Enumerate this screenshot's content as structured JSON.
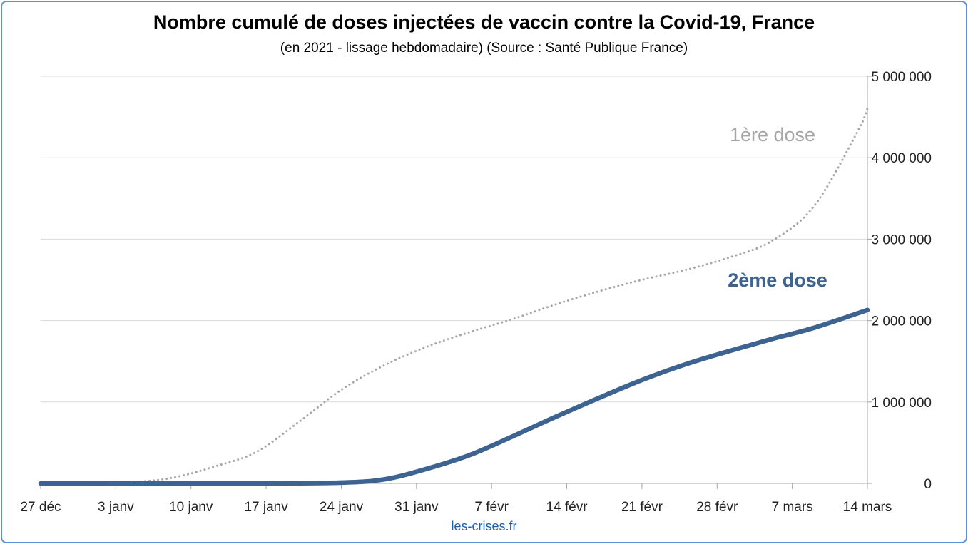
{
  "credit": "les-crises.fr",
  "chart_data": {
    "type": "line",
    "title": "Nombre cumulé de doses injectées de vaccin contre la Covid-19, France",
    "subtitle": "(en 2021 - lissage hebdomadaire) (Source : Santé Publique France)",
    "x_labels": [
      "27 déc",
      "3 janv",
      "10 janv",
      "17 janv",
      "24 janv",
      "31 janv",
      "7 févr",
      "14 févr",
      "21 févr",
      "28 févr",
      "7 mars",
      "14 mars"
    ],
    "y_ticks": [
      "0",
      "1 000 000",
      "2 000 000",
      "3 000 000",
      "4 000 000",
      "5 000 000"
    ],
    "ylim": [
      0,
      5000000
    ],
    "x_range_days": [
      0,
      77
    ],
    "grid": true,
    "series": [
      {
        "name": "1ère dose",
        "color": "#a6a6a6",
        "style": "dotted",
        "x": [
          0,
          5,
          10,
          13,
          16,
          20,
          24,
          28,
          32,
          36,
          40,
          44,
          48,
          52,
          56,
          60,
          64,
          68,
          72,
          76,
          77
        ],
        "y": [
          0,
          0,
          30000,
          90000,
          200000,
          380000,
          750000,
          1150000,
          1450000,
          1680000,
          1860000,
          2020000,
          2200000,
          2360000,
          2500000,
          2620000,
          2770000,
          2970000,
          3400000,
          4300000,
          4600000
        ]
      },
      {
        "name": "2ème dose",
        "color": "#3d6391",
        "style": "solid",
        "x": [
          0,
          20,
          28,
          32,
          36,
          40,
          44,
          48,
          52,
          56,
          60,
          64,
          68,
          72,
          77
        ],
        "y": [
          0,
          0,
          10000,
          50000,
          180000,
          350000,
          580000,
          820000,
          1050000,
          1270000,
          1460000,
          1620000,
          1770000,
          1910000,
          2130000
        ]
      }
    ]
  }
}
